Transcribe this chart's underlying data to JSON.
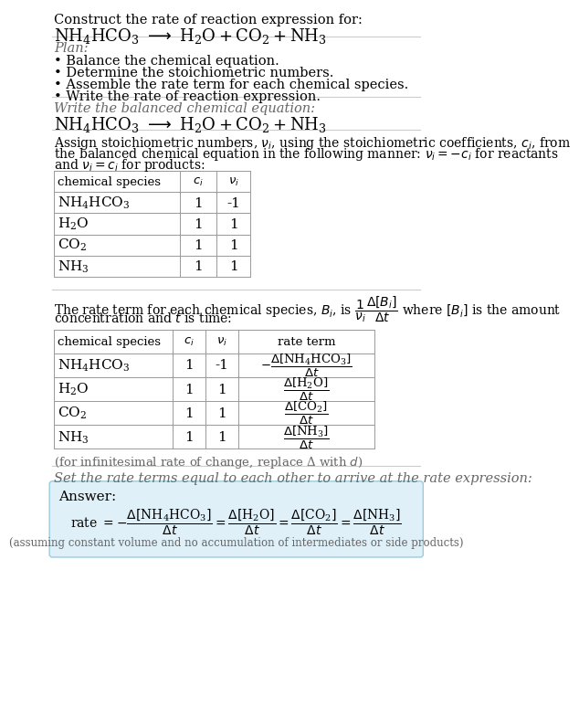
{
  "bg_color": "#ffffff",
  "text_color": "#000000",
  "gray_text": "#666666",
  "table_line_color": "#999999",
  "answer_bg": "#dff0f8",
  "answer_border": "#99ccdd",
  "title_line1": "Construct the rate of reaction expression for:",
  "plan_header": "Plan:",
  "plan_items": [
    "• Balance the chemical equation.",
    "• Determine the stoichiometric numbers.",
    "• Assemble the rate term for each chemical species.",
    "• Write the rate of reaction expression."
  ],
  "step1_header": "Write the balanced chemical equation:",
  "step2_intro": [
    "Assign stoichiometric numbers, $\\nu_i$, using the stoichiometric coefficients, $c_i$, from",
    "the balanced chemical equation in the following manner: $\\nu_i = -c_i$ for reactants",
    "and $\\nu_i = c_i$ for products:"
  ],
  "step3_intro": [
    "The rate term for each chemical species, $B_i$, is $\\dfrac{1}{\\nu_i}\\dfrac{\\Delta[B_i]}{\\Delta t}$ where $[B_i]$ is the amount",
    "concentration and $t$ is time:"
  ],
  "infinitesimal_note": "(for infinitesimal rate of change, replace Δ with $d$)",
  "step4_header": "Set the rate terms equal to each other to arrive at the rate expression:",
  "answer_label": "Answer:",
  "answer_note": "(assuming constant volume and no accumulation of intermediates or side products)",
  "species_math": [
    "$\\mathregular{NH_4HCO_3}$",
    "$\\mathregular{H_2O}$",
    "$\\mathregular{CO_2}$",
    "$\\mathregular{NH_3}$"
  ],
  "ci_vals": [
    "1",
    "1",
    "1",
    "1"
  ],
  "nu_vals": [
    "-1",
    "1",
    "1",
    "1"
  ],
  "hline_color": "#cccccc"
}
